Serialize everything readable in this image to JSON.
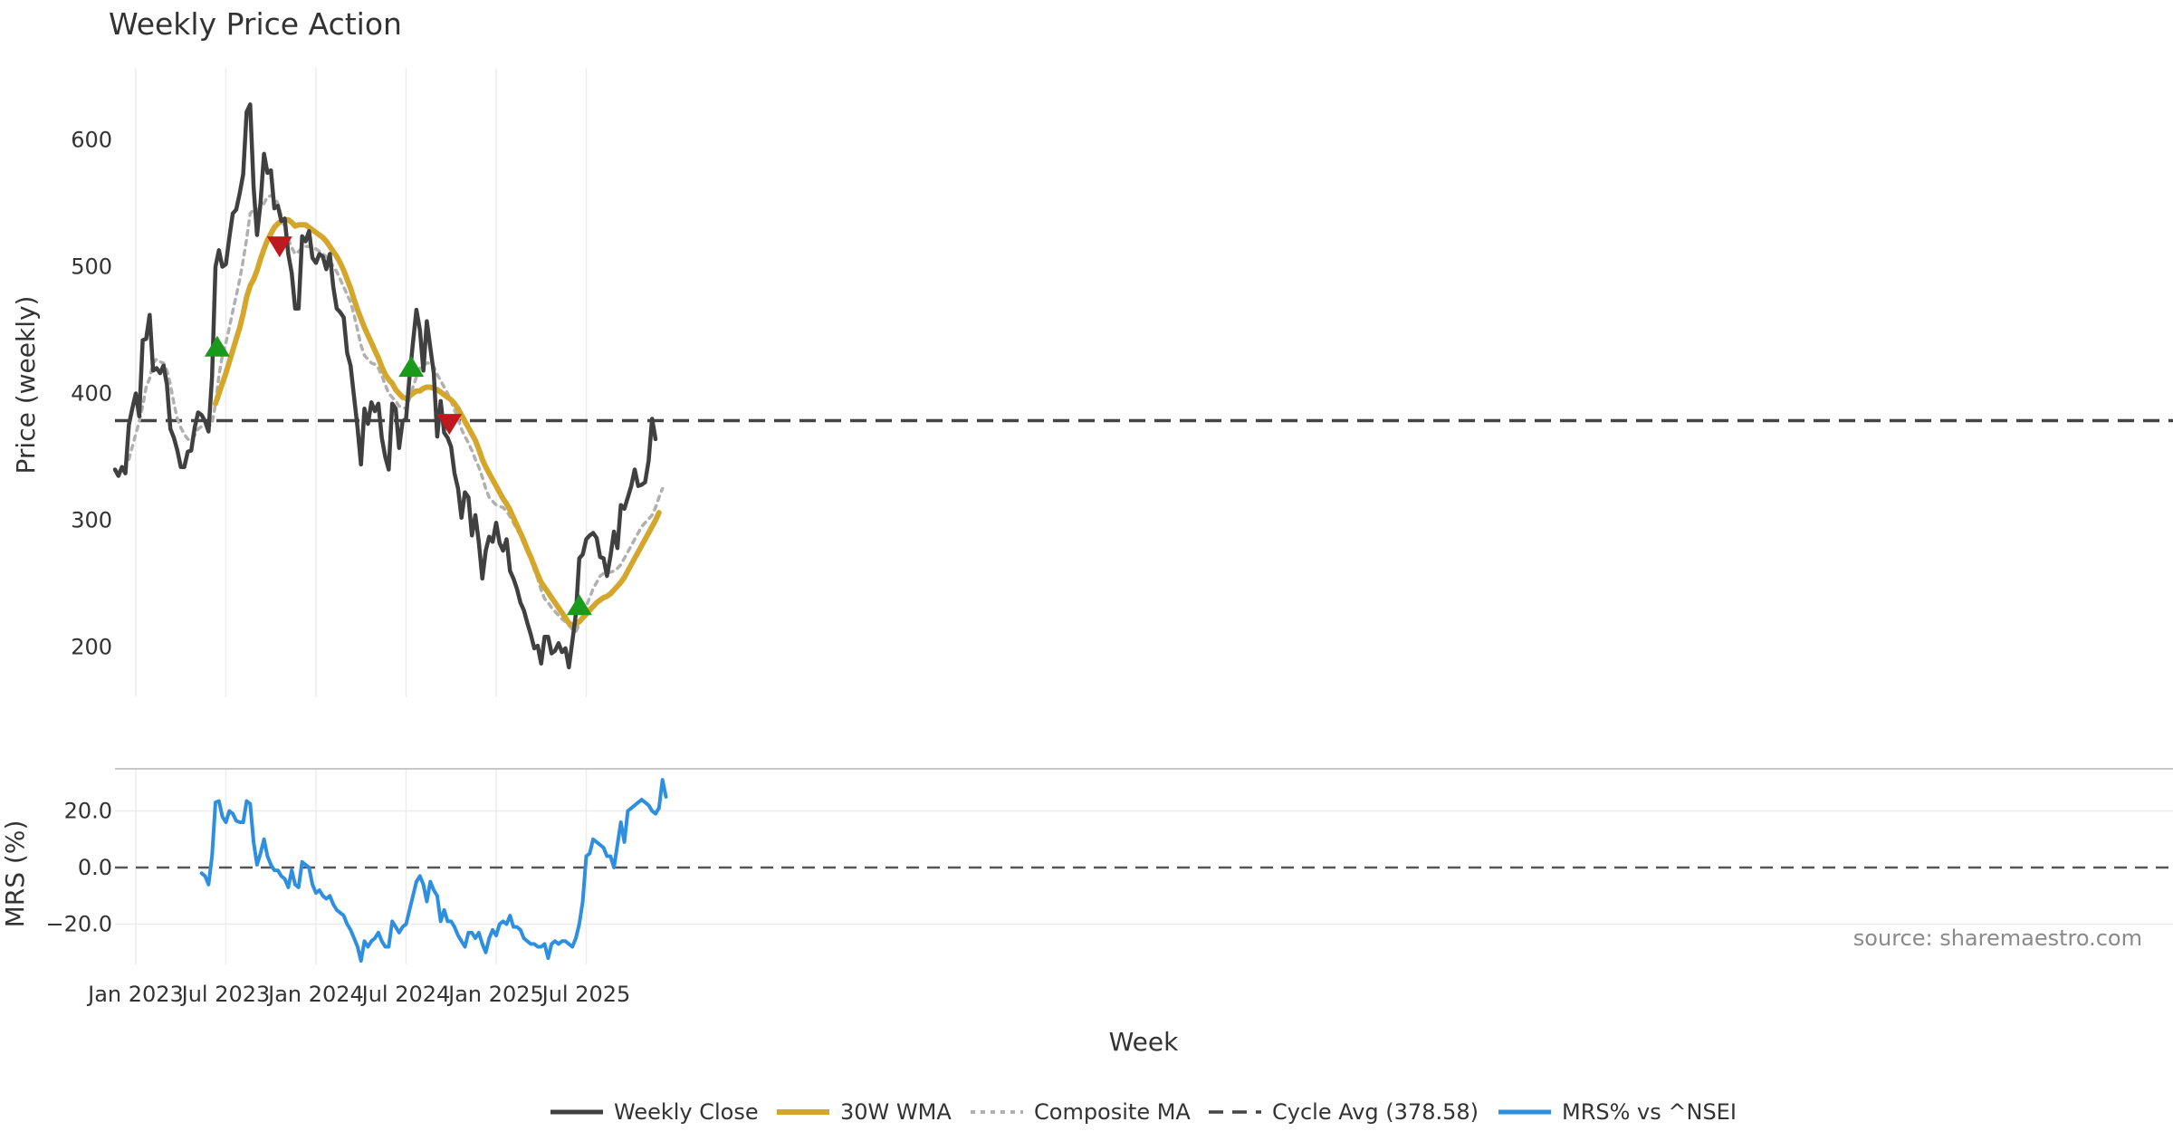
{
  "chart_data": {
    "type": "line",
    "title": "Weekly Price Action",
    "xlabel": "Week",
    "x_ticks": [
      "Jan 2023",
      "Jul 2023",
      "Jan 2024",
      "Jul 2024",
      "Jan 2025",
      "Jul 2025"
    ],
    "x_tick_weeks": [
      6,
      32,
      58,
      84,
      110,
      136
    ],
    "price_panel": {
      "ylabel": "Price (weekly)",
      "ylim": [
        150,
        650
      ],
      "yticks": [
        "600",
        "500",
        "400",
        "300",
        "200"
      ],
      "ytick_values": [
        600,
        500,
        400,
        300,
        200
      ],
      "cycle_avg": 378.58,
      "series": [
        {
          "name": "Weekly Close",
          "color": "#404040",
          "values": [
            340,
            335,
            342,
            337,
            375,
            388,
            400,
            382,
            442,
            443,
            462,
            418,
            420,
            416,
            422,
            407,
            372,
            365,
            355,
            342,
            342,
            354,
            355,
            373,
            385,
            383,
            378,
            370,
            413,
            500,
            513,
            500,
            502,
            523,
            542,
            545,
            558,
            573,
            622,
            628,
            563,
            525,
            550,
            589,
            574,
            576,
            546,
            548,
            536,
            538,
            510,
            495,
            467,
            467,
            524,
            520,
            528,
            507,
            503,
            510,
            508,
            498,
            510,
            484,
            467,
            464,
            460,
            432,
            422,
            397,
            373,
            344,
            388,
            376,
            393,
            386,
            392,
            365,
            350,
            340,
            392,
            388,
            357,
            378,
            380,
            413,
            440,
            466,
            450,
            418,
            457,
            436,
            416,
            366,
            394,
            369,
            365,
            358,
            337,
            325,
            302,
            322,
            318,
            288,
            304,
            283,
            254,
            276,
            287,
            283,
            298,
            282,
            276,
            285,
            260,
            254,
            246,
            235,
            229,
            219,
            210,
            199,
            201,
            187,
            208,
            208,
            195,
            197,
            203,
            196,
            199,
            184,
            205,
            226,
            270,
            273,
            285,
            288,
            290,
            286,
            271,
            270,
            256,
            272,
            291,
            278,
            312,
            309,
            318,
            327,
            340,
            327,
            328,
            330,
            347,
            380,
            364
          ]
        },
        {
          "name": "30W WMA",
          "color": "#d4a72c",
          "values": [
            null,
            null,
            null,
            null,
            null,
            null,
            null,
            null,
            null,
            null,
            null,
            null,
            null,
            null,
            null,
            null,
            null,
            null,
            null,
            null,
            null,
            null,
            null,
            null,
            null,
            null,
            null,
            null,
            null,
            392,
            400,
            408,
            416,
            425,
            434,
            443,
            452,
            463,
            476,
            485,
            490,
            497,
            506,
            514,
            521,
            526,
            531,
            534,
            536,
            537,
            537,
            535,
            532,
            533,
            533,
            533,
            531,
            529,
            527,
            525,
            523,
            520,
            516,
            512,
            508,
            503,
            497,
            490,
            483,
            474,
            466,
            459,
            452,
            446,
            440,
            434,
            428,
            421,
            415,
            411,
            408,
            403,
            400,
            397,
            396,
            398,
            400,
            402,
            402,
            404,
            405,
            405,
            404,
            403,
            401,
            399,
            397,
            395,
            392,
            388,
            383,
            378,
            373,
            368,
            363,
            356,
            348,
            342,
            337,
            332,
            327,
            322,
            317,
            313,
            308,
            302,
            296,
            290,
            284,
            277,
            271,
            264,
            257,
            251,
            247,
            243,
            239,
            235,
            231,
            227,
            223,
            219,
            217,
            218,
            220,
            223,
            226,
            229,
            232,
            235,
            237,
            239,
            240,
            242,
            245,
            248,
            251,
            255,
            260,
            265,
            270,
            275,
            280,
            285,
            290,
            295,
            300,
            306
          ]
        },
        {
          "name": "Composite MA",
          "color": "#b0b0b0",
          "values": [
            null,
            null,
            null,
            null,
            348,
            358,
            368,
            378,
            390,
            405,
            412,
            424,
            427,
            425,
            424,
            418,
            407,
            392,
            380,
            373,
            368,
            364,
            363,
            367,
            372,
            374,
            375,
            374,
            376,
            392,
            414,
            430,
            440,
            452,
            465,
            477,
            490,
            505,
            522,
            542,
            545,
            545,
            546,
            550,
            555,
            556,
            555,
            550,
            540,
            530,
            522,
            515,
            510,
            512,
            515,
            516,
            516,
            515,
            514,
            512,
            510,
            508,
            505,
            500,
            496,
            490,
            484,
            478,
            472,
            462,
            450,
            438,
            430,
            427,
            424,
            423,
            420,
            414,
            407,
            400,
            397,
            394,
            390,
            389,
            388,
            396,
            405,
            413,
            420,
            422,
            424,
            424,
            421,
            415,
            410,
            405,
            400,
            394,
            387,
            380,
            372,
            366,
            361,
            355,
            348,
            342,
            334,
            325,
            318,
            315,
            312,
            311,
            310,
            307,
            303,
            298,
            293,
            288,
            281,
            275,
            269,
            261,
            254,
            245,
            238,
            235,
            231,
            228,
            225,
            222,
            220,
            217,
            214,
            212,
            218,
            225,
            232,
            239,
            246,
            251,
            256,
            258,
            258,
            259,
            260,
            262,
            265,
            270,
            275,
            280,
            285,
            290,
            295,
            298,
            301,
            304,
            310,
            318,
            325
          ]
        }
      ],
      "signals": [
        {
          "type": "buy",
          "week": 29.5,
          "value": 437
        },
        {
          "type": "sell",
          "week": 47.5,
          "value": 516
        },
        {
          "type": "buy",
          "week": 85.5,
          "value": 421
        },
        {
          "type": "sell",
          "week": 96.5,
          "value": 376
        },
        {
          "type": "buy",
          "week": 134,
          "value": 233
        }
      ]
    },
    "mrs_panel": {
      "ylabel": "MRS (%)",
      "ylim": [
        -36,
        34
      ],
      "yticks": [
        "20.0",
        "0.0",
        "−20.0"
      ],
      "ytick_values": [
        20,
        0,
        -20
      ],
      "series": [
        {
          "name": "MRS% vs ^NSEI",
          "color": "#2e8fe0",
          "values": [
            null,
            null,
            null,
            null,
            null,
            null,
            null,
            null,
            null,
            null,
            null,
            null,
            null,
            null,
            null,
            null,
            null,
            null,
            null,
            null,
            null,
            null,
            null,
            null,
            null,
            -2,
            -3,
            -6,
            4,
            23,
            23.5,
            18,
            16,
            20,
            19,
            16.5,
            16,
            16,
            23.5,
            22.5,
            9,
            1,
            5,
            10,
            4,
            1,
            -1,
            -1,
            -3,
            -4,
            -7,
            -1,
            -6,
            -7,
            2,
            1,
            0,
            -6,
            -9,
            -8,
            -10,
            -11,
            -10,
            -13,
            -15,
            -16,
            -17,
            -20,
            -22,
            -25,
            -28,
            -33,
            -26,
            -28,
            -26,
            -25,
            -23,
            -26,
            -28,
            -28,
            -19,
            -21,
            -23,
            -21,
            -20,
            -15,
            -10,
            -5,
            -3,
            -6,
            -12,
            -5,
            -8,
            -10,
            -19,
            -15,
            -19,
            -19,
            -21,
            -24,
            -26,
            -28,
            -23,
            -23,
            -25,
            -23,
            -27,
            -30,
            -25,
            -22,
            -24,
            -20,
            -19,
            -20,
            -17,
            -21,
            -21,
            -22,
            -25,
            -26,
            -27,
            -27,
            -28,
            -28,
            -27,
            -32,
            -27,
            -26,
            -27,
            -26,
            -26,
            -27,
            -28,
            -25,
            -20,
            -12,
            4,
            5,
            10,
            9,
            8,
            7,
            4,
            4,
            0,
            8,
            16,
            9,
            20,
            21,
            22,
            23,
            24,
            23,
            22,
            20,
            19,
            21,
            31,
            25
          ]
        }
      ]
    },
    "legend": [
      {
        "label": "Weekly Close",
        "style": "solid-dark"
      },
      {
        "label": "30W WMA",
        "style": "solid-gold"
      },
      {
        "label": "Composite MA",
        "style": "dotted-gray"
      },
      {
        "label": "Cycle Avg (378.58)",
        "style": "dashed-dark"
      },
      {
        "label": "MRS% vs ^NSEI",
        "style": "solid-blue"
      }
    ],
    "source": "source: sharemaestro.com",
    "colors": {
      "close": "#404040",
      "wma": "#d4a72c",
      "composite": "#b0b0b0",
      "cycle": "#444444",
      "mrs": "#2e8fe0",
      "buy": "#1a9a1a",
      "sell": "#c0181f"
    }
  }
}
